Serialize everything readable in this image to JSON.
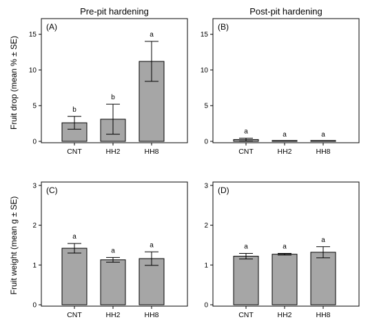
{
  "column_titles": [
    "Pre-pit hardening",
    "Post-pit hardening"
  ],
  "row_ylabels": [
    "Fruit drop (mean % ± SE)",
    "Fruit weight (mean g ± SE)"
  ],
  "colors": {
    "bar_fill": "#a6a6a6",
    "bar_stroke": "#000000",
    "axis": "#000000",
    "background": "#ffffff"
  },
  "chart_data": [
    {
      "type": "bar",
      "panel_label": "(A)",
      "categories": [
        "CNT",
        "HH2",
        "HH8"
      ],
      "values": [
        2.6,
        3.1,
        11.2
      ],
      "errors": [
        0.9,
        2.1,
        2.8
      ],
      "significance": [
        "b",
        "b",
        "a"
      ],
      "ylim": [
        0,
        17
      ],
      "yticks": [
        0,
        5,
        10,
        15
      ],
      "ytick_labels": [
        "0",
        "5",
        "10",
        "15"
      ],
      "grid": false
    },
    {
      "type": "bar",
      "panel_label": "(B)",
      "categories": [
        "CNT",
        "HH2",
        "HH8"
      ],
      "values": [
        0.25,
        0.0,
        0.0
      ],
      "errors": [
        0.2,
        0.0,
        0.0
      ],
      "significance": [
        "a",
        "a",
        "a"
      ],
      "ylim": [
        0,
        17
      ],
      "yticks": [
        0,
        5,
        10,
        15
      ],
      "ytick_labels": [
        "0",
        "5",
        "10",
        "15"
      ],
      "grid": false
    },
    {
      "type": "bar",
      "panel_label": "(C)",
      "categories": [
        "CNT",
        "HH2",
        "HH8"
      ],
      "values": [
        1.42,
        1.13,
        1.16
      ],
      "errors": [
        0.12,
        0.06,
        0.17
      ],
      "significance": [
        "a",
        "a",
        "a"
      ],
      "ylim": [
        0,
        3.05
      ],
      "yticks": [
        0,
        1,
        2,
        3
      ],
      "ytick_labels": [
        "0",
        "1",
        "2",
        "3"
      ],
      "grid": false
    },
    {
      "type": "bar",
      "panel_label": "(D)",
      "categories": [
        "CNT",
        "HH2",
        "HH8"
      ],
      "values": [
        1.22,
        1.27,
        1.32
      ],
      "errors": [
        0.07,
        0.02,
        0.14
      ],
      "significance": [
        "a",
        "a",
        "a"
      ],
      "ylim": [
        0,
        3.05
      ],
      "yticks": [
        0,
        1,
        2,
        3
      ],
      "ytick_labels": [
        "0",
        "1",
        "2",
        "3"
      ],
      "grid": false
    }
  ]
}
